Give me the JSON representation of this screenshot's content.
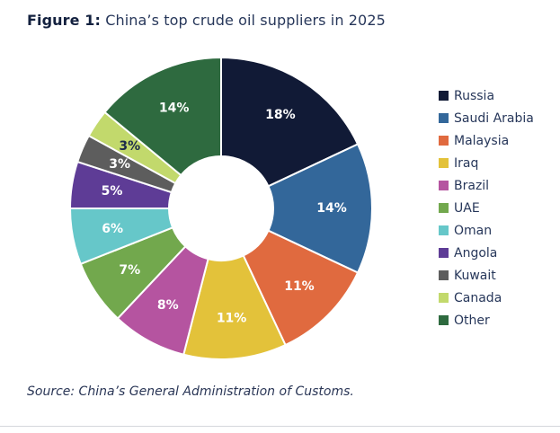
{
  "figure": {
    "label": "Figure 1:",
    "title": "China’s top crude oil suppliers in 2025",
    "source": "Source: China’s General Administration of Customs."
  },
  "chart_data": {
    "type": "pie",
    "subtype": "donut",
    "title": "China’s top crude oil suppliers in 2025",
    "unit": "%",
    "legend_position": "right",
    "categories": [
      "Russia",
      "Saudi Arabia",
      "Malaysia",
      "Iraq",
      "Brazil",
      "UAE",
      "Oman",
      "Angola",
      "Kuwait",
      "Canada",
      "Other"
    ],
    "values": [
      18,
      14,
      11,
      11,
      8,
      7,
      6,
      5,
      3,
      3,
      14
    ],
    "labels": [
      "18%",
      "14%",
      "11%",
      "11%",
      "8%",
      "7%",
      "6%",
      "5%",
      "3%",
      "3%",
      "14%"
    ],
    "colors": [
      "#111a36",
      "#33679a",
      "#e06a3f",
      "#e3c23a",
      "#b554a0",
      "#72a84d",
      "#66c7c9",
      "#5e3c96",
      "#5d5d5d",
      "#c2d96c",
      "#2e6a3f"
    ],
    "label_colors": [
      "#ffffff",
      "#ffffff",
      "#ffffff",
      "#ffffff",
      "#ffffff",
      "#ffffff",
      "#ffffff",
      "#ffffff",
      "#ffffff",
      "#1b2a4a",
      "#ffffff"
    ]
  }
}
